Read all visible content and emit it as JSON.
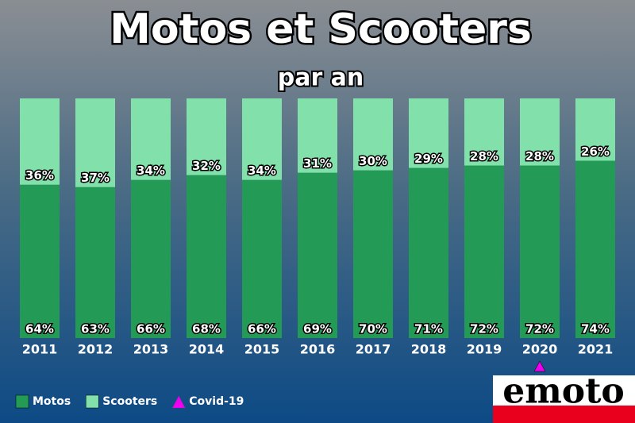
{
  "chart_data": {
    "type": "stacked_bar",
    "title": "Motos et Scooters",
    "subtitle": "par an",
    "categories": [
      "2011",
      "2012",
      "2013",
      "2014",
      "2015",
      "2016",
      "2017",
      "2018",
      "2019",
      "2020",
      "2021"
    ],
    "series": [
      {
        "name": "Motos",
        "color": "#239b56",
        "values": [
          64,
          63,
          66,
          68,
          66,
          69,
          70,
          71,
          72,
          72,
          74
        ],
        "value_labels": [
          "64%",
          "63%",
          "66%",
          "68%",
          "66%",
          "69%",
          "70%",
          "71%",
          "72%",
          "72%",
          "74%"
        ]
      },
      {
        "name": "Scooters",
        "color": "#82e0aa",
        "values": [
          36,
          37,
          34,
          32,
          34,
          31,
          30,
          29,
          28,
          28,
          26
        ],
        "value_labels": [
          "36%",
          "37%",
          "34%",
          "32%",
          "34%",
          "31%",
          "30%",
          "29%",
          "28%",
          "28%",
          "26%"
        ]
      }
    ],
    "marker": {
      "name": "Covid-19",
      "color": "#ee00ee",
      "category": "2020"
    },
    "logo": "emoto"
  }
}
